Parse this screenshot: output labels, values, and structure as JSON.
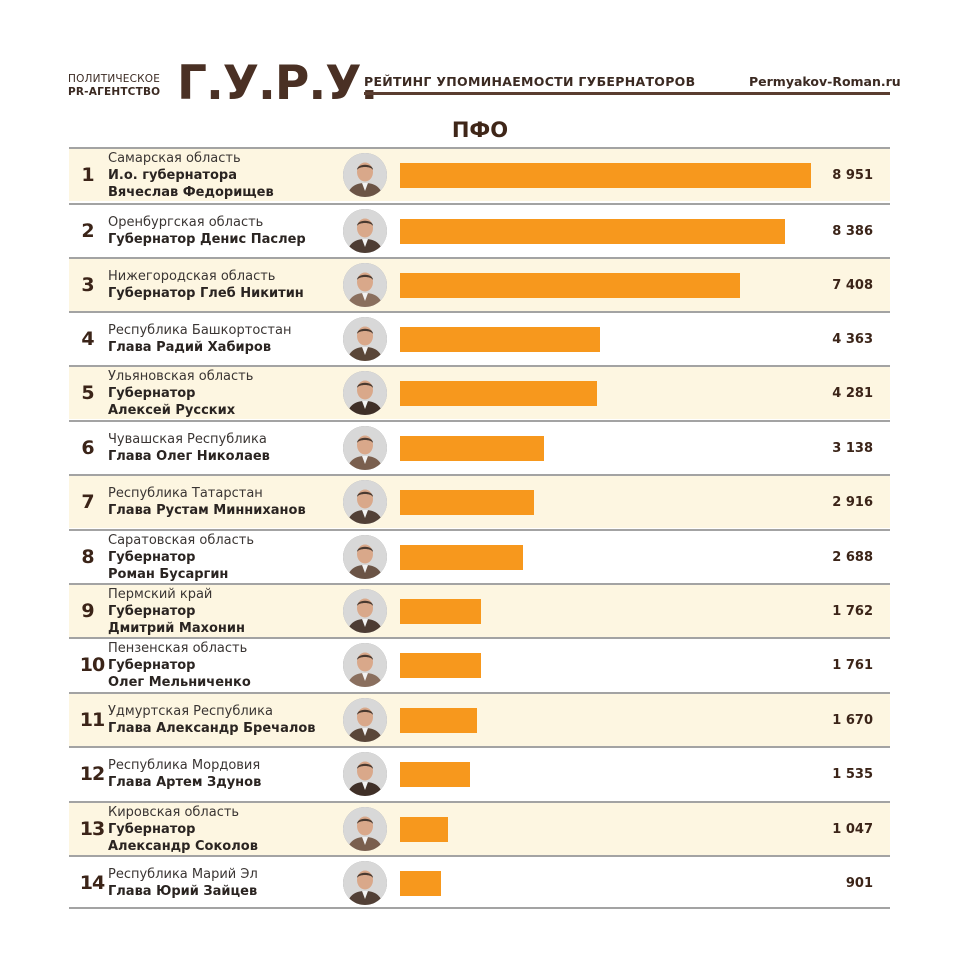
{
  "header": {
    "agency_line1": "ПОЛИТИЧЕСКОЕ",
    "agency_line2": "PR-АГЕНТСТВО",
    "logo": "Г.У.Р.У.",
    "rating_title": "РЕЙТИНГ УПОМИНАЕМОСТИ ГУБЕРНАТОРОВ",
    "site": "Permyakov-Roman.ru"
  },
  "colors": {
    "bar": "#f7981d",
    "row_alt": "#fdf6e1",
    "text_brown": "#3b2418"
  },
  "chart_data": {
    "type": "bar",
    "orientation": "horizontal",
    "title": "ПФО",
    "xlim": [
      0,
      9000
    ],
    "categories": [
      "Самарская область",
      "Оренбургская область",
      "Нижегородская область",
      "Республика Башкортостан",
      "Ульяновская область",
      "Чувашская Республика",
      "Республика Татарстан",
      "Саратовская область",
      "Пермский край",
      "Пензенская область",
      "Удмуртская Республика",
      "Республика Мордовия",
      "Кировская область",
      "Республика Марий Эл"
    ],
    "rows": [
      {
        "rank": "1",
        "region": "Самарская область",
        "person_lines": [
          "И.о. губернатора",
          "Вячеслав Федорищев"
        ],
        "value": 8951,
        "value_label": "8 951"
      },
      {
        "rank": "2",
        "region": "Оренбургская область",
        "person_lines": [
          "Губернатор Денис Паслер"
        ],
        "value": 8386,
        "value_label": "8 386"
      },
      {
        "rank": "3",
        "region": "Нижегородская область",
        "person_lines": [
          "Губернатор Глеб Никитин"
        ],
        "value": 7408,
        "value_label": "7 408"
      },
      {
        "rank": "4",
        "region": "Республика Башкортостан",
        "person_lines": [
          "Глава Радий Хабиров"
        ],
        "value": 4363,
        "value_label": "4 363"
      },
      {
        "rank": "5",
        "region": "Ульяновская область",
        "person_lines": [
          "Губернатор",
          "Алексей Русских"
        ],
        "value": 4281,
        "value_label": "4 281"
      },
      {
        "rank": "6",
        "region": "Чувашская Республика",
        "person_lines": [
          "Глава Олег Николаев"
        ],
        "value": 3138,
        "value_label": "3 138"
      },
      {
        "rank": "7",
        "region": "Республика Татарстан",
        "person_lines": [
          "Глава Рустам Минниханов"
        ],
        "value": 2916,
        "value_label": "2 916"
      },
      {
        "rank": "8",
        "region": "Саратовская область",
        "person_lines": [
          "Губернатор",
          "Роман Бусаргин"
        ],
        "value": 2688,
        "value_label": "2 688"
      },
      {
        "rank": "9",
        "region": "Пермский край",
        "person_lines": [
          "Губернатор",
          "Дмитрий Махонин"
        ],
        "value": 1762,
        "value_label": "1 762"
      },
      {
        "rank": "10",
        "region": "Пензенская область",
        "person_lines": [
          "Губернатор",
          "Олег Мельниченко"
        ],
        "value": 1761,
        "value_label": "1 761"
      },
      {
        "rank": "11",
        "region": "Удмуртская Республика",
        "person_lines": [
          "Глава Александр Бречалов"
        ],
        "value": 1670,
        "value_label": "1 670"
      },
      {
        "rank": "12",
        "region": "Республика Мордовия",
        "person_lines": [
          "Глава Артем Здунов"
        ],
        "value": 1535,
        "value_label": "1 535"
      },
      {
        "rank": "13",
        "region": "Кировская область",
        "person_lines": [
          "Губернатор",
          "Александр Соколов"
        ],
        "value": 1047,
        "value_label": "1 047"
      },
      {
        "rank": "14",
        "region": "Республика Марий Эл",
        "person_lines": [
          "Глава Юрий Зайцев"
        ],
        "value": 901,
        "value_label": "901"
      }
    ]
  }
}
